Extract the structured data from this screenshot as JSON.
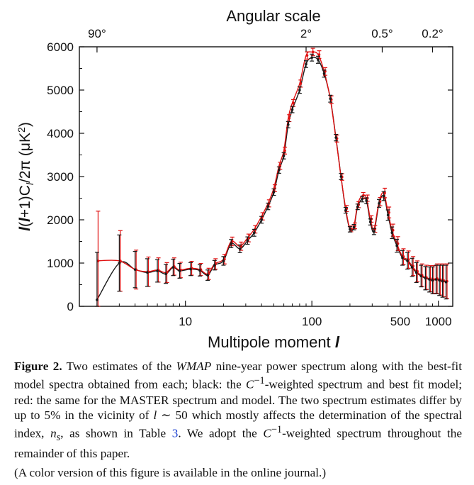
{
  "chart_data": {
    "type": "scatter",
    "top_axis": {
      "title": "Angular scale",
      "ticks": [
        {
          "label": "90°",
          "multipole": 2
        },
        {
          "label": "2°",
          "multipole": 90
        },
        {
          "label": "0.5°",
          "multipole": 360
        },
        {
          "label": "0.2°",
          "multipole": 900
        }
      ]
    },
    "xlabel": "Multipole moment",
    "xlabel_symbol": "l",
    "ylabel": "l(l+1)Cl/2π (μK²)",
    "x_scale": "log",
    "xlim": [
      1.45,
      1300
    ],
    "ylim": [
      0,
      6000
    ],
    "x_tick_labels": [
      "10",
      "100",
      "500",
      "1000"
    ],
    "x_ticks": [
      10,
      100,
      500,
      1000
    ],
    "y_ticks": [
      0,
      1000,
      2000,
      3000,
      4000,
      5000,
      6000
    ],
    "y_tick_labels": [
      "0",
      "1000",
      "2000",
      "3000",
      "4000",
      "5000",
      "6000"
    ],
    "series": [
      {
        "color": "#1a1a1a",
        "x": [
          2,
          3,
          4,
          5,
          6,
          7,
          8,
          9,
          11,
          13,
          15,
          17,
          20,
          23,
          27,
          31,
          35,
          40,
          45,
          50,
          55,
          60,
          65,
          70,
          80,
          90,
          100,
          112,
          125,
          140,
          155,
          170,
          185,
          200,
          215,
          230,
          250,
          270,
          290,
          310,
          340,
          370,
          400,
          430,
          470,
          520,
          570,
          620,
          670,
          730,
          790,
          850,
          900,
          960,
          1020,
          1080,
          1150
        ],
        "y": [
          150,
          1000,
          850,
          780,
          820,
          750,
          900,
          820,
          860,
          830,
          720,
          950,
          1050,
          1450,
          1330,
          1520,
          1700,
          2000,
          2310,
          2640,
          3150,
          3480,
          4200,
          4550,
          5000,
          5600,
          5750,
          5700,
          5380,
          4800,
          3900,
          3000,
          2220,
          1780,
          1830,
          2300,
          2480,
          2440,
          1950,
          1730,
          2380,
          2550,
          2110,
          1700,
          1400,
          1120,
          1050,
          900,
          780,
          700,
          650,
          620,
          600,
          620,
          600,
          580,
          560
        ],
        "err": [
          1100,
          650,
          420,
          320,
          260,
          220,
          190,
          170,
          150,
          130,
          120,
          110,
          100,
          95,
          90,
          85,
          80,
          78,
          76,
          75,
          74,
          73,
          73,
          74,
          75,
          78,
          80,
          82,
          82,
          80,
          75,
          70,
          65,
          62,
          62,
          64,
          66,
          68,
          70,
          72,
          90,
          105,
          120,
          135,
          150,
          170,
          190,
          210,
          230,
          250,
          270,
          290,
          310,
          330,
          350,
          370,
          390
        ]
      },
      {
        "color": "#e01010",
        "x": [
          2,
          3,
          4,
          5,
          6,
          7,
          8,
          9,
          11,
          13,
          15,
          17,
          20,
          23,
          27,
          31,
          35,
          40,
          45,
          50,
          55,
          60,
          65,
          70,
          80,
          90,
          100,
          112,
          125,
          140,
          155,
          170,
          185,
          200,
          215,
          230,
          250,
          270,
          290,
          310,
          340,
          370,
          400,
          430,
          470,
          520,
          570,
          620,
          670,
          730,
          790,
          850,
          900,
          960,
          1020,
          1080,
          1150
        ],
        "y": [
          1050,
          1050,
          850,
          800,
          840,
          780,
          920,
          840,
          880,
          850,
          750,
          980,
          1090,
          1500,
          1390,
          1580,
          1780,
          2080,
          2380,
          2730,
          3250,
          3600,
          4350,
          4700,
          5150,
          5800,
          5880,
          5820,
          5430,
          4780,
          3880,
          2990,
          2260,
          1790,
          1860,
          2350,
          2560,
          2500,
          2020,
          1790,
          2420,
          2620,
          2170,
          1760,
          1450,
          1150,
          1080,
          930,
          810,
          720,
          670,
          640,
          620,
          640,
          620,
          600,
          580
        ],
        "err": [
          1150,
          700,
          450,
          340,
          280,
          230,
          200,
          180,
          160,
          140,
          130,
          120,
          110,
          100,
          95,
          90,
          86,
          84,
          82,
          80,
          80,
          80,
          80,
          80,
          82,
          84,
          86,
          88,
          88,
          86,
          82,
          76,
          70,
          67,
          67,
          69,
          71,
          73,
          75,
          78,
          95,
          110,
          125,
          140,
          160,
          180,
          200,
          220,
          240,
          260,
          280,
          300,
          320,
          340,
          360,
          380,
          400
        ]
      }
    ],
    "fit_curves": [
      {
        "color": "#1a1a1a"
      },
      {
        "color": "#e01010"
      }
    ]
  },
  "caption": {
    "label": "Figure 2.",
    "part1": " Two estimates of the ",
    "wmap": "WMAP",
    "part2": " nine-year power spectrum along with the best-fit model spectra obtained from each; black: the ",
    "cinv1": "C",
    "cinv1_sup": "−1",
    "part3": "-weighted spectrum and best fit model; red: the same for the MASTER spectrum and model. The two spectrum estimates differ by up to 5% in the vicinity of ",
    "ell": "l",
    "sim": " ∼ 50 which mostly affects the determination of the spectral index, ",
    "ns": "n",
    "ns_sub": "s",
    "part4": ", as shown in Table ",
    "table_ref": "3",
    "part5": ". We adopt the ",
    "cinv2": "C",
    "cinv2_sup": "−1",
    "part6": "-weighted spectrum throughout the remainder of this paper.",
    "note": "(A color version of this figure is available in the online journal.)"
  }
}
